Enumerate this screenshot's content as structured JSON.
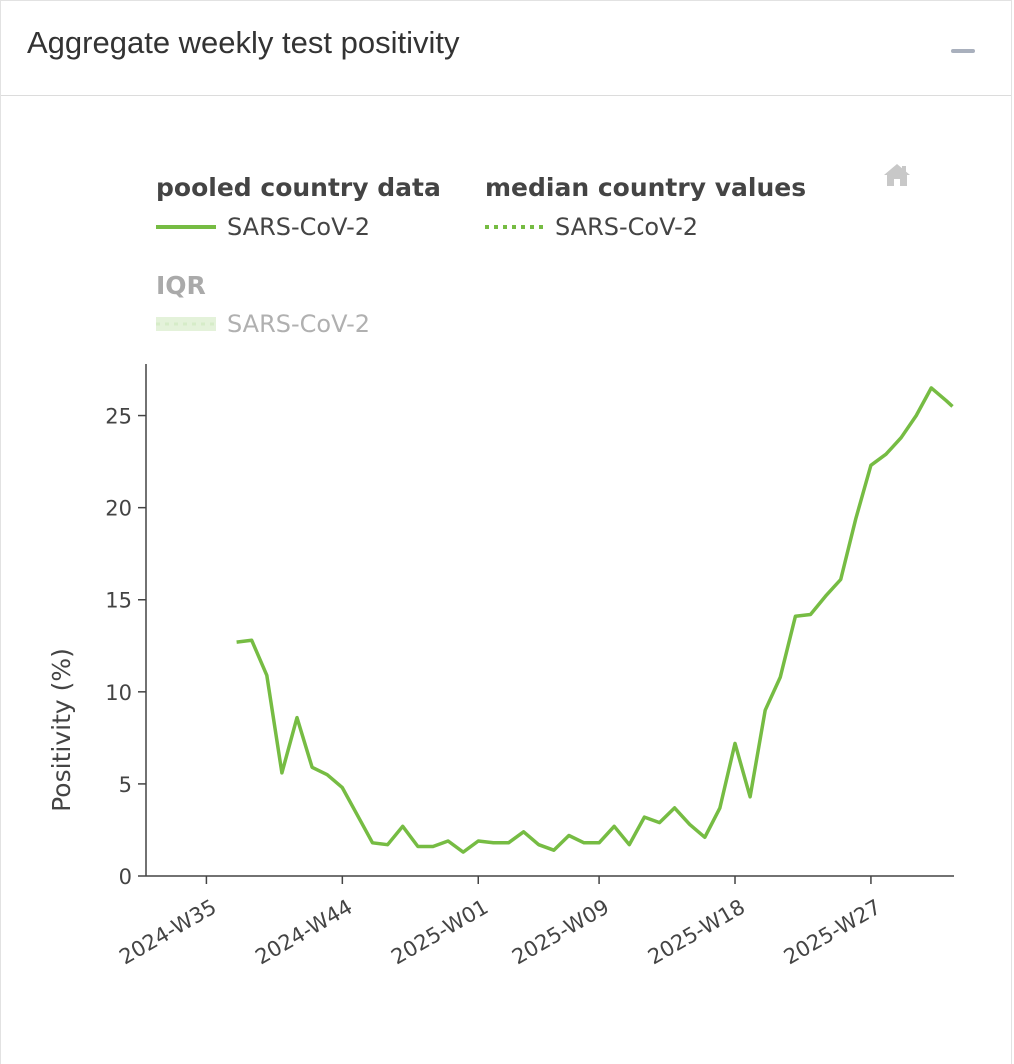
{
  "card": {
    "title": "Aggregate weekly test positivity"
  },
  "icons": {
    "collapse": "minus-icon",
    "home": "home-icon"
  },
  "chart_data": {
    "type": "line",
    "title": "Aggregate weekly test positivity",
    "xlabel": "",
    "ylabel": "Positivity (%)",
    "ylim": [
      0,
      27.8
    ],
    "yticks": [
      0,
      5,
      10,
      15,
      20,
      25
    ],
    "x_tick_labels": [
      "2024-W35",
      "2024-W44",
      "2025-W01",
      "2025-W09",
      "2025-W18",
      "2025-W27"
    ],
    "x_tick_index": [
      0,
      9,
      18,
      26,
      35,
      44
    ],
    "x_range_index": [
      -4,
      49.5
    ],
    "legend": {
      "groups": [
        {
          "title": "pooled country data",
          "entries": [
            {
              "label": "SARS-CoV-2",
              "style": "solid",
              "muted": false
            }
          ]
        },
        {
          "title": "median country values",
          "entries": [
            {
              "label": "SARS-CoV-2",
              "style": "dotted",
              "muted": false
            }
          ]
        },
        {
          "title": "IQR",
          "entries": [
            {
              "label": "SARS-CoV-2",
              "style": "band",
              "muted": true
            }
          ]
        }
      ]
    },
    "colors": {
      "series": "#76bc43",
      "band": "#e4f2da",
      "axis": "#444444",
      "muted_text": "#aaaaaa"
    },
    "series": [
      {
        "name": "SARS-CoV-2 (pooled country data)",
        "x_index": [
          2,
          3,
          4,
          5,
          6,
          7,
          8,
          9,
          10,
          11,
          12,
          13,
          14,
          15,
          16,
          17,
          18,
          19,
          20,
          21,
          22,
          23,
          24,
          25,
          26,
          27,
          28,
          29,
          30,
          31,
          32,
          33,
          34,
          35,
          36,
          37,
          38,
          39,
          40,
          41,
          42,
          43,
          44,
          45,
          46,
          47,
          48,
          49,
          49.4
        ],
        "values": [
          12.7,
          12.8,
          10.9,
          5.6,
          8.6,
          5.9,
          5.5,
          4.8,
          3.3,
          1.8,
          1.7,
          2.7,
          1.6,
          1.6,
          1.9,
          1.3,
          1.9,
          1.8,
          1.8,
          2.4,
          1.7,
          1.4,
          2.2,
          1.8,
          1.8,
          2.7,
          1.7,
          3.2,
          2.9,
          3.7,
          2.8,
          2.1,
          3.7,
          7.2,
          4.3,
          9.0,
          10.8,
          14.1,
          14.2,
          15.2,
          16.1,
          19.4,
          22.3,
          22.9,
          23.8,
          25.0,
          26.5,
          25.8,
          25.5
        ]
      }
    ]
  }
}
